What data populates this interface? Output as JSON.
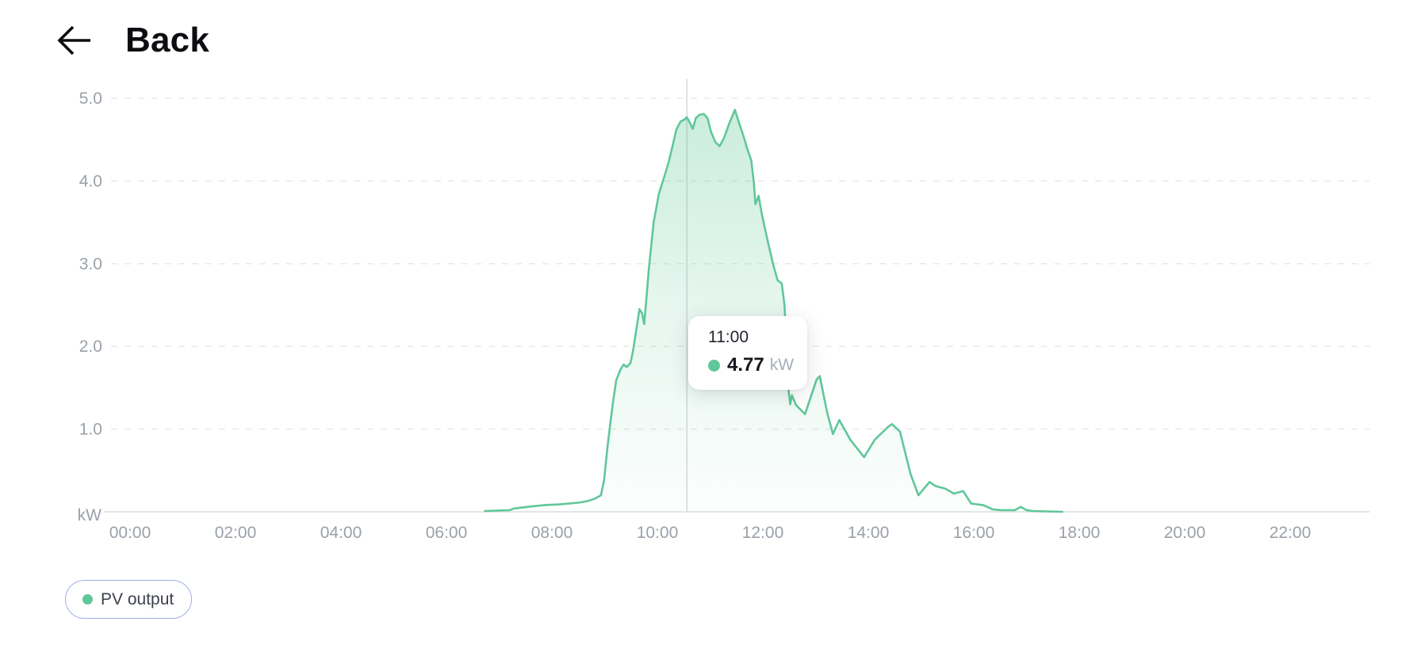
{
  "header": {
    "back_label": "Back"
  },
  "colors": {
    "accent_green": "#60c79a",
    "legend_border": "#9db0e6",
    "axis_text": "#9aa1aa",
    "gridline": "#e9eaed",
    "baseline": "#e4e6e9",
    "crosshair": "#d7dade",
    "tooltip_time": "#1f242c",
    "tooltip_value": "#15181d",
    "tooltip_unit": "#a9aeb5"
  },
  "legend": {
    "items": [
      {
        "label": "PV output",
        "color": "#60c79a"
      }
    ]
  },
  "chart_data": {
    "type": "area",
    "title": "",
    "xlabel": "",
    "ylabel": "kW",
    "unit": "kW",
    "grid": true,
    "legend_position": "bottom-left",
    "ylim": [
      0,
      5.2
    ],
    "xlim_hours": [
      -0.5,
      23.5
    ],
    "y_tick_labels": [
      "5.0",
      "4.0",
      "3.0",
      "2.0",
      "1.0"
    ],
    "y_tick_values": [
      5,
      4,
      3,
      2,
      1
    ],
    "y_unit_label": "kW",
    "x_tick_labels": [
      "00:00",
      "02:00",
      "04:00",
      "06:00",
      "08:00",
      "10:00",
      "12:00",
      "14:00",
      "16:00",
      "18:00",
      "20:00",
      "22:00"
    ],
    "x_tick_hours": [
      0,
      2,
      4,
      6,
      8,
      10,
      12,
      14,
      16,
      18,
      20,
      22
    ],
    "tooltip": {
      "time": "11:00",
      "series_value": "4.77",
      "unit": "kW",
      "point_hour": 10.56,
      "point_kw": 4.77
    },
    "series": [
      {
        "name": "PV output",
        "color": "#60c79a",
        "points": [
          [
            6.73,
            0.01
          ],
          [
            7.2,
            0.02
          ],
          [
            7.28,
            0.04
          ],
          [
            7.55,
            0.06
          ],
          [
            7.85,
            0.08
          ],
          [
            8.15,
            0.09
          ],
          [
            8.5,
            0.11
          ],
          [
            8.68,
            0.13
          ],
          [
            8.82,
            0.16
          ],
          [
            8.93,
            0.2
          ],
          [
            8.99,
            0.38
          ],
          [
            9.05,
            0.76
          ],
          [
            9.11,
            1.08
          ],
          [
            9.16,
            1.33
          ],
          [
            9.22,
            1.59
          ],
          [
            9.3,
            1.72
          ],
          [
            9.36,
            1.78
          ],
          [
            9.42,
            1.75
          ],
          [
            9.49,
            1.8
          ],
          [
            9.54,
            1.95
          ],
          [
            9.6,
            2.2
          ],
          [
            9.66,
            2.45
          ],
          [
            9.71,
            2.4
          ],
          [
            9.75,
            2.27
          ],
          [
            9.84,
            2.95
          ],
          [
            9.93,
            3.5
          ],
          [
            10.03,
            3.85
          ],
          [
            10.14,
            4.07
          ],
          [
            10.21,
            4.22
          ],
          [
            10.28,
            4.4
          ],
          [
            10.36,
            4.62
          ],
          [
            10.44,
            4.72
          ],
          [
            10.51,
            4.74
          ],
          [
            10.56,
            4.77
          ],
          [
            10.62,
            4.7
          ],
          [
            10.67,
            4.63
          ],
          [
            10.73,
            4.76
          ],
          [
            10.8,
            4.8
          ],
          [
            10.88,
            4.81
          ],
          [
            10.95,
            4.76
          ],
          [
            11.02,
            4.59
          ],
          [
            11.1,
            4.47
          ],
          [
            11.18,
            4.42
          ],
          [
            11.27,
            4.53
          ],
          [
            11.36,
            4.69
          ],
          [
            11.47,
            4.86
          ],
          [
            11.56,
            4.68
          ],
          [
            11.63,
            4.55
          ],
          [
            11.7,
            4.4
          ],
          [
            11.78,
            4.25
          ],
          [
            11.83,
            3.98
          ],
          [
            11.86,
            3.72
          ],
          [
            11.92,
            3.82
          ],
          [
            11.98,
            3.6
          ],
          [
            12.09,
            3.28
          ],
          [
            12.2,
            2.98
          ],
          [
            12.28,
            2.8
          ],
          [
            12.36,
            2.76
          ],
          [
            12.41,
            2.5
          ],
          [
            12.46,
            1.9
          ],
          [
            12.49,
            1.45
          ],
          [
            12.52,
            1.3
          ],
          [
            12.55,
            1.41
          ],
          [
            12.63,
            1.29
          ],
          [
            12.8,
            1.18
          ],
          [
            13.02,
            1.6
          ],
          [
            13.08,
            1.64
          ],
          [
            13.22,
            1.2
          ],
          [
            13.33,
            0.94
          ],
          [
            13.45,
            1.11
          ],
          [
            13.66,
            0.87
          ],
          [
            13.92,
            0.66
          ],
          [
            14.12,
            0.87
          ],
          [
            14.38,
            1.03
          ],
          [
            14.45,
            1.06
          ],
          [
            14.6,
            0.97
          ],
          [
            14.8,
            0.46
          ],
          [
            14.95,
            0.2
          ],
          [
            15.16,
            0.36
          ],
          [
            15.28,
            0.31
          ],
          [
            15.46,
            0.28
          ],
          [
            15.62,
            0.22
          ],
          [
            15.8,
            0.25
          ],
          [
            15.95,
            0.1
          ],
          [
            16.18,
            0.08
          ],
          [
            16.36,
            0.03
          ],
          [
            16.52,
            0.02
          ],
          [
            16.78,
            0.02
          ],
          [
            16.89,
            0.06
          ],
          [
            17.0,
            0.02
          ],
          [
            17.12,
            0.01
          ],
          [
            17.68,
            0.0
          ]
        ]
      }
    ]
  }
}
